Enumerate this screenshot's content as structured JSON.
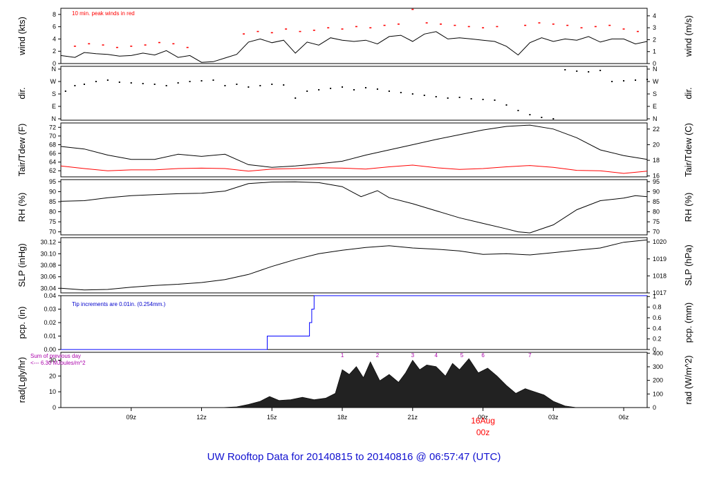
{
  "title": "UW Rooftop Data for 20140815  to  20140816 @ 06:57:47  (UTC)",
  "colors": {
    "data": "#000000",
    "peak": "#ff0000",
    "dew": "#ff0000",
    "pcp": "#0000ff",
    "pcp_note": "#0000cc",
    "sum": "#aa00aa",
    "rad_fill": "#222222",
    "title": "#1010d0",
    "date_label": "#ff0000"
  },
  "chart_data": [
    {
      "type": "line",
      "panel": "wind",
      "ylabel_left": "wind (kts)",
      "ylabel_right": "wind (m/s)",
      "yticks_left": [
        "0",
        "2",
        "4",
        "6",
        "8"
      ],
      "yticks_right": [
        "0",
        "1",
        "2",
        "3",
        "4"
      ],
      "ylim": [
        0,
        9
      ],
      "annotation": "10 min. peak winds in red",
      "series": [
        {
          "x": [
            6.0,
            6.6,
            7.0,
            7.5,
            8.0,
            8.5,
            9.0,
            9.5,
            10.0,
            10.5,
            11.0,
            11.5,
            12.0,
            12.5,
            13.0,
            13.5,
            14.0,
            14.5,
            15.0,
            15.5,
            16.0,
            16.5,
            17.0,
            17.5,
            18.0,
            18.5,
            19.0,
            19.5,
            20.0,
            20.5,
            21.0,
            21.5,
            22.0,
            22.5,
            23.0,
            23.5,
            24.0,
            24.5,
            25.0,
            25.5,
            26.0,
            26.5,
            27.0,
            27.5,
            28.0,
            28.5,
            29.0,
            29.5,
            30.0,
            30.5,
            31.0
          ],
          "values": [
            1.3,
            1.0,
            1.8,
            1.6,
            1.5,
            1.2,
            1.3,
            1.7,
            1.4,
            2.1,
            1.0,
            1.3,
            0.2,
            0.3,
            0.9,
            1.5,
            3.5,
            4.0,
            3.4,
            3.8,
            1.7,
            3.5,
            3.0,
            4.2,
            3.8,
            3.6,
            3.8,
            3.2,
            4.4,
            4.6,
            3.6,
            4.8,
            5.2,
            4.0,
            4.2,
            4.0,
            3.8,
            3.6,
            2.8,
            1.4,
            3.4,
            4.2,
            3.6,
            4.0,
            3.8,
            4.4,
            3.5,
            4.0,
            4.0,
            3.2,
            3.6
          ]
        },
        {
          "name": "peak",
          "x": [
            6.6,
            7.2,
            7.8,
            8.4,
            9.0,
            9.6,
            10.2,
            10.8,
            11.4,
            13.8,
            14.4,
            15.0,
            15.6,
            16.2,
            16.8,
            17.4,
            18.0,
            18.6,
            19.2,
            19.8,
            20.4,
            21.0,
            21.6,
            22.2,
            22.8,
            23.4,
            24.0,
            24.6,
            25.8,
            26.4,
            27.0,
            27.6,
            28.2,
            28.8,
            29.4,
            30.0,
            30.6
          ],
          "values": [
            2.8,
            3.2,
            3.0,
            2.6,
            2.8,
            3.0,
            3.4,
            3.2,
            2.6,
            4.8,
            5.2,
            5.0,
            5.6,
            5.2,
            5.4,
            5.8,
            5.6,
            6.0,
            5.8,
            6.2,
            6.4,
            8.8,
            6.6,
            6.4,
            6.2,
            6.0,
            5.8,
            6.0,
            6.2,
            6.6,
            6.4,
            6.2,
            5.8,
            6.0,
            6.2,
            5.6,
            5.2
          ]
        }
      ]
    },
    {
      "type": "scatter",
      "panel": "direction",
      "ylabel_left": "dir.",
      "ylabel_right": "dir.",
      "yticks_left": [
        "N",
        "E",
        "S",
        "W",
        "N"
      ],
      "yticks_right": [
        "N",
        "E",
        "S",
        "W",
        "N"
      ],
      "ylim": [
        0,
        360
      ],
      "series": [
        {
          "x": [
            6.2,
            6.6,
            7.0,
            7.5,
            8.0,
            8.5,
            9.0,
            9.5,
            10.0,
            10.5,
            11.0,
            11.5,
            12.0,
            12.5,
            13.0,
            13.5,
            14.0,
            14.5,
            15.0,
            15.5,
            16.0,
            16.5,
            17.0,
            17.5,
            18.0,
            18.5,
            19.0,
            19.5,
            20.0,
            20.5,
            21.0,
            21.5,
            22.0,
            22.5,
            23.0,
            23.5,
            24.0,
            24.5,
            25.0,
            25.5,
            26.0,
            26.5,
            27.0,
            27.5,
            28.0,
            28.5,
            29.0,
            29.5,
            30.0,
            30.5,
            31.0
          ],
          "values": [
            200,
            240,
            250,
            270,
            280,
            265,
            260,
            255,
            250,
            240,
            260,
            270,
            275,
            280,
            240,
            250,
            230,
            240,
            250,
            245,
            150,
            200,
            210,
            220,
            230,
            210,
            225,
            215,
            200,
            190,
            180,
            170,
            160,
            150,
            155,
            145,
            140,
            135,
            100,
            60,
            30,
            10,
            0,
            355,
            345,
            340,
            350,
            270,
            275,
            280,
            285
          ]
        }
      ]
    },
    {
      "type": "line",
      "panel": "temperature",
      "ylabel_left": "Tair/Tdew (F)",
      "ylabel_right": "Tair/Tdew (C)",
      "yticks_left": [
        "62",
        "64",
        "66",
        "68",
        "70",
        "72"
      ],
      "yticks_right": [
        "16",
        "18",
        "20",
        "22"
      ],
      "ylim": [
        60.6,
        73.0
      ],
      "series": [
        {
          "name": "Tair",
          "x": [
            6.0,
            7.0,
            8.0,
            9.0,
            10.0,
            11.0,
            12.0,
            13.0,
            14.0,
            15.0,
            16.0,
            17.0,
            18.0,
            19.0,
            20.0,
            21.0,
            22.0,
            23.0,
            24.0,
            25.0,
            26.0,
            27.0,
            28.0,
            29.0,
            30.0,
            31.0
          ],
          "values": [
            67.6,
            67.0,
            65.6,
            64.6,
            64.6,
            65.8,
            65.3,
            65.8,
            63.4,
            62.8,
            63.1,
            63.6,
            64.2,
            65.6,
            66.8,
            68.0,
            69.2,
            70.3,
            71.4,
            72.2,
            72.5,
            71.6,
            69.6,
            66.8,
            65.5,
            64.6
          ]
        },
        {
          "name": "Tdew",
          "x": [
            6.0,
            7.0,
            8.0,
            9.0,
            10.0,
            11.0,
            12.0,
            13.0,
            14.0,
            15.0,
            16.0,
            17.0,
            18.0,
            19.0,
            20.0,
            21.0,
            22.0,
            23.0,
            24.0,
            25.0,
            26.0,
            27.0,
            28.0,
            29.0,
            30.0,
            31.0
          ],
          "values": [
            63.1,
            62.5,
            62.0,
            62.2,
            62.2,
            62.5,
            62.6,
            62.5,
            61.9,
            62.4,
            62.5,
            62.7,
            62.6,
            62.4,
            62.9,
            63.3,
            62.7,
            62.3,
            62.5,
            62.9,
            63.2,
            62.8,
            62.1,
            62.0,
            61.4,
            61.9
          ]
        }
      ]
    },
    {
      "type": "line",
      "panel": "humidity",
      "ylabel_left": "RH (%)",
      "ylabel_right": "RH (%)",
      "yticks_left": [
        "70",
        "75",
        "80",
        "85",
        "90",
        "95"
      ],
      "yticks_right": [
        "70",
        "75",
        "80",
        "85",
        "90",
        "95"
      ],
      "ylim": [
        68.5,
        96.0
      ],
      "series": [
        {
          "x": [
            6.0,
            7.0,
            8.0,
            9.0,
            10.0,
            11.0,
            12.0,
            13.0,
            14.0,
            15.0,
            16.0,
            17.0,
            18.0,
            18.8,
            19.5,
            20.0,
            21.0,
            22.0,
            23.0,
            24.0,
            25.0,
            25.5,
            26.0,
            27.0,
            28.0,
            29.0,
            30.0,
            30.5,
            31.0
          ],
          "values": [
            85.2,
            85.5,
            87.0,
            88.0,
            88.5,
            89.0,
            89.2,
            90.3,
            94.0,
            94.8,
            94.9,
            94.5,
            92.5,
            87.5,
            90.5,
            87.0,
            84.0,
            80.5,
            77.0,
            74.2,
            71.5,
            70.0,
            69.5,
            73.5,
            81.0,
            85.5,
            86.8,
            88.0,
            87.5
          ]
        }
      ]
    },
    {
      "type": "line",
      "panel": "pressure",
      "ylabel_left": "SLP (inHg)",
      "ylabel_right": "SLP (hPa)",
      "yticks_left": [
        "30.04",
        "30.06",
        "30.08",
        "30.10",
        "30.12"
      ],
      "yticks_right": [
        "1017",
        "1018",
        "1019",
        "1020"
      ],
      "ylim": [
        30.032,
        30.128
      ],
      "series": [
        {
          "x": [
            6.0,
            7.0,
            8.0,
            9.0,
            10.0,
            11.0,
            12.0,
            13.0,
            14.0,
            15.0,
            16.0,
            17.0,
            18.0,
            19.0,
            20.0,
            21.0,
            22.0,
            23.0,
            24.0,
            25.0,
            26.0,
            27.0,
            28.0,
            29.0,
            30.0,
            31.0
          ],
          "values": [
            30.04,
            30.037,
            30.038,
            30.042,
            30.045,
            30.047,
            30.05,
            30.055,
            30.064,
            30.078,
            30.09,
            30.1,
            30.106,
            30.111,
            30.114,
            30.11,
            30.108,
            30.105,
            30.099,
            30.1,
            30.098,
            30.102,
            30.106,
            30.11,
            30.12,
            30.124
          ]
        }
      ]
    },
    {
      "type": "line",
      "panel": "precipitation",
      "ylabel_left": "pcp. (in)",
      "ylabel_right": "pcp. (mm)",
      "yticks_left": [
        "0.00",
        "0.01",
        "0.02",
        "0.03",
        "0.04"
      ],
      "yticks_right": [
        "0",
        "0.2",
        "0.4",
        "0.6",
        "0.8",
        "1"
      ],
      "ylim": [
        0,
        0.04
      ],
      "annotation": "Tip increments are 0.01in. (0.254mm.)",
      "series": [
        {
          "x": [
            6.0,
            14.8,
            14.8,
            16.6,
            16.6,
            16.7,
            16.7,
            16.8,
            16.8,
            31.0
          ],
          "values": [
            0.0,
            0.0,
            0.01,
            0.01,
            0.02,
            0.02,
            0.03,
            0.03,
            0.04,
            0.04
          ]
        }
      ]
    },
    {
      "type": "area",
      "panel": "radiation",
      "ylabel_left": "rad(Lgly/hr)",
      "ylabel_right": "rad (W/m^2)",
      "yticks_left": [
        "0",
        "10",
        "20",
        "30"
      ],
      "yticks_right": [
        "0",
        "100",
        "200",
        "300",
        "400"
      ],
      "ylim": [
        0,
        35
      ],
      "annotation_line1": "Sum of previous day",
      "annotation_line2": "<--- 6.30 MJoules/m^2",
      "hour_marks": [
        "1",
        "2",
        "3",
        "4",
        "5",
        "6",
        "7"
      ],
      "hour_mark_x": [
        18.0,
        19.5,
        21.0,
        22.0,
        23.1,
        24.0,
        26.0
      ],
      "series": [
        {
          "x": [
            12.8,
            13.5,
            14.0,
            14.5,
            14.9,
            15.3,
            15.8,
            16.3,
            16.8,
            17.3,
            17.7,
            18.0,
            18.3,
            18.6,
            18.9,
            19.2,
            19.6,
            20.0,
            20.4,
            20.7,
            21.0,
            21.3,
            21.6,
            22.0,
            22.4,
            22.7,
            23.0,
            23.4,
            23.8,
            24.2,
            24.6,
            25.0,
            25.4,
            25.8,
            26.2,
            26.6,
            27.0,
            27.5,
            28.0
          ],
          "values": [
            0,
            0.5,
            2.0,
            4.0,
            7.0,
            4.5,
            5.0,
            6.5,
            5.0,
            6.0,
            9.0,
            24.0,
            21.0,
            26.0,
            19.0,
            29.0,
            17.0,
            21.0,
            16.0,
            22.0,
            30.0,
            24.0,
            27.0,
            26.0,
            20.0,
            28.0,
            24.0,
            31.0,
            22.0,
            25.0,
            20.0,
            14.0,
            9.0,
            12.0,
            10.0,
            8.0,
            4.0,
            1.0,
            0
          ]
        }
      ]
    }
  ],
  "x_axis": {
    "ticks": [
      "09z",
      "12z",
      "15z",
      "18z",
      "21z",
      "00z",
      "03z",
      "06z"
    ],
    "tick_hours": [
      9,
      12,
      15,
      18,
      21,
      24,
      27,
      30
    ],
    "date_label": "16Aug",
    "date_label_sub": "00z"
  }
}
